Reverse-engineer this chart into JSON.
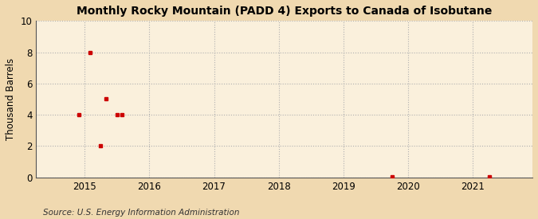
{
  "title": "Monthly Rocky Mountain (PADD 4) Exports to Canada of Isobutane",
  "ylabel": "Thousand Barrels",
  "source": "Source: U.S. Energy Information Administration",
  "outer_bg_color": "#f0d9b0",
  "plot_bg_color": "#faf0dc",
  "xlim_left": 2014.25,
  "xlim_right": 2021.92,
  "ylim_bottom": 0,
  "ylim_top": 10,
  "yticks": [
    0,
    2,
    4,
    6,
    8,
    10
  ],
  "xticks": [
    2015,
    2016,
    2017,
    2018,
    2019,
    2020,
    2021
  ],
  "data_x": [
    2014.917,
    2015.083,
    2015.25,
    2015.333,
    2015.5,
    2015.583,
    2019.75,
    2021.25
  ],
  "data_y": [
    4.0,
    8.0,
    2.0,
    5.0,
    4.0,
    4.0,
    0.05,
    0.05
  ],
  "marker_color": "#cc0000",
  "marker_size": 3.5,
  "grid_color": "#b0b0b0",
  "grid_linestyle": ":",
  "grid_linewidth": 0.8
}
